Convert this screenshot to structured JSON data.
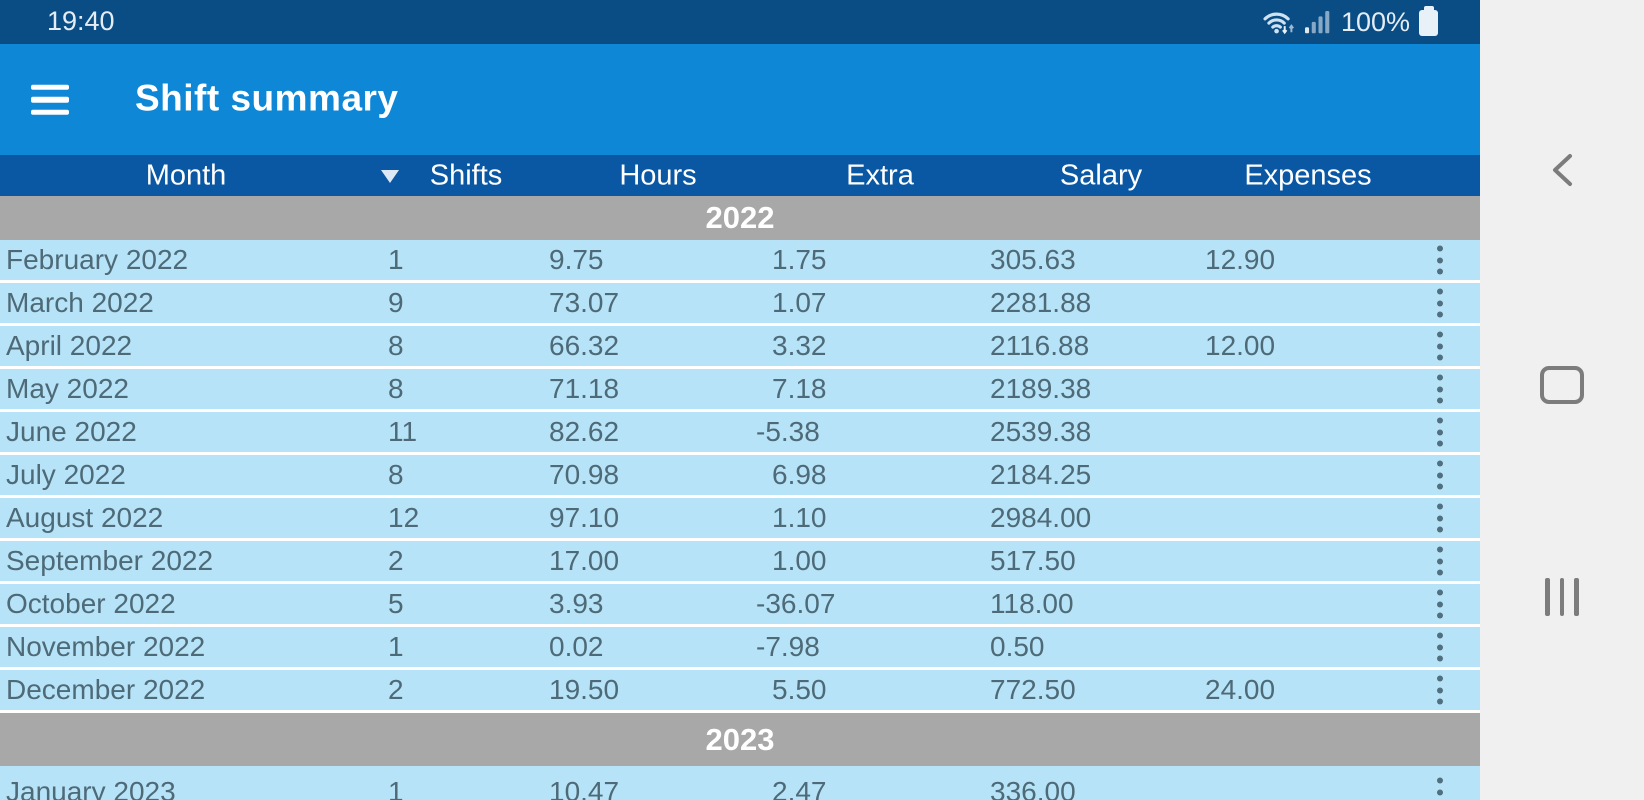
{
  "status_bar": {
    "time": "19:40",
    "battery": "100%",
    "icons": [
      "wifi-icon",
      "signal-strength-icon",
      "battery-icon"
    ]
  },
  "app_bar": {
    "title": "Shift summary",
    "menu_icon": "hamburger-menu-icon"
  },
  "table": {
    "columns": [
      "Month",
      "Shifts",
      "Hours",
      "Extra",
      "Salary",
      "Expenses"
    ],
    "sort": {
      "column": "Month",
      "direction": "descending",
      "indicator": "▼"
    },
    "sections": [
      {
        "year": "2022",
        "rows": [
          {
            "month": "February 2022",
            "shifts": "1",
            "hours": "9.75",
            "extra": "1.75",
            "salary": "305.63",
            "expenses": "12.90"
          },
          {
            "month": "March 2022",
            "shifts": "9",
            "hours": "73.07",
            "extra": "1.07",
            "salary": "2281.88",
            "expenses": ""
          },
          {
            "month": "April 2022",
            "shifts": "8",
            "hours": "66.32",
            "extra": "3.32",
            "salary": "2116.88",
            "expenses": "12.00"
          },
          {
            "month": "May 2022",
            "shifts": "8",
            "hours": "71.18",
            "extra": "7.18",
            "salary": "2189.38",
            "expenses": ""
          },
          {
            "month": "June 2022",
            "shifts": "11",
            "hours": "82.62",
            "extra": "-5.38",
            "salary": "2539.38",
            "expenses": ""
          },
          {
            "month": "July 2022",
            "shifts": "8",
            "hours": "70.98",
            "extra": "6.98",
            "salary": "2184.25",
            "expenses": ""
          },
          {
            "month": "August 2022",
            "shifts": "12",
            "hours": "97.10",
            "extra": "1.10",
            "salary": "2984.00",
            "expenses": ""
          },
          {
            "month": "September 2022",
            "shifts": "2",
            "hours": "17.00",
            "extra": "1.00",
            "salary": "517.50",
            "expenses": ""
          },
          {
            "month": "October 2022",
            "shifts": "5",
            "hours": "3.93",
            "extra": "-36.07",
            "salary": "118.00",
            "expenses": ""
          },
          {
            "month": "November 2022",
            "shifts": "1",
            "hours": "0.02",
            "extra": "-7.98",
            "salary": "0.50",
            "expenses": ""
          },
          {
            "month": "December 2022",
            "shifts": "2",
            "hours": "19.50",
            "extra": "5.50",
            "salary": "772.50",
            "expenses": "24.00"
          }
        ]
      },
      {
        "year": "2023",
        "rows": [
          {
            "month": "January 2023",
            "shifts": "1",
            "hours": "10.47",
            "extra": "2.47",
            "salary": "336.00",
            "expenses": ""
          }
        ]
      }
    ],
    "row_menu_icon": "kebab-menu-icon"
  },
  "nav_bar": {
    "icons": [
      "back-icon",
      "home-icon",
      "recent-apps-icon"
    ]
  },
  "colors": {
    "status_bar_bg": "#0a4d84",
    "app_bar_bg": "#0d87d6",
    "column_header_bg": "#0a58a4",
    "year_band_bg": "#a8a8a8",
    "row_bg": "#b6e3f8",
    "row_separator": "#ffffff",
    "data_text": "#4e6a77",
    "nav_bar_bg": "#f0f0f0",
    "nav_icon": "#7c7c7c"
  }
}
